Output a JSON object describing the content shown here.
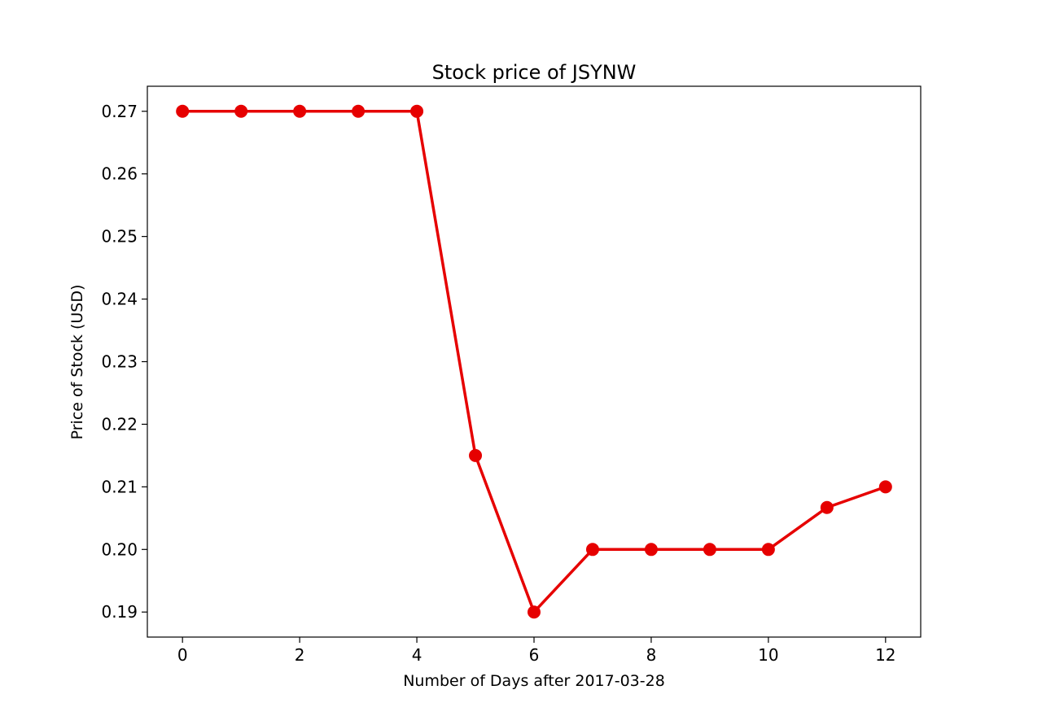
{
  "chart_data": {
    "type": "line",
    "title": "Stock price of JSYNW",
    "xlabel": "Number of Days after 2017-03-28",
    "ylabel": "Price of Stock (USD)",
    "x": [
      0,
      1,
      2,
      3,
      4,
      5,
      6,
      7,
      8,
      9,
      10,
      11,
      12
    ],
    "series": [
      {
        "values": [
          0.27,
          0.27,
          0.27,
          0.27,
          0.27,
          0.215,
          0.19,
          0.2,
          0.2,
          0.2,
          0.2,
          0.2067,
          0.21
        ],
        "color": "#e60000",
        "marker": "circle"
      }
    ],
    "xlim": [
      -0.6,
      12.6
    ],
    "ylim": [
      0.186,
      0.274
    ],
    "x_ticks": [
      0,
      2,
      4,
      6,
      8,
      10,
      12
    ],
    "x_tick_labels": [
      "0",
      "2",
      "4",
      "6",
      "8",
      "10",
      "12"
    ],
    "y_ticks": [
      0.19,
      0.2,
      0.21,
      0.22,
      0.23,
      0.24,
      0.25,
      0.26,
      0.27
    ],
    "y_tick_labels": [
      "0.19",
      "0.20",
      "0.21",
      "0.22",
      "0.23",
      "0.24",
      "0.25",
      "0.26",
      "0.27"
    ],
    "grid": false,
    "legend": "none"
  }
}
